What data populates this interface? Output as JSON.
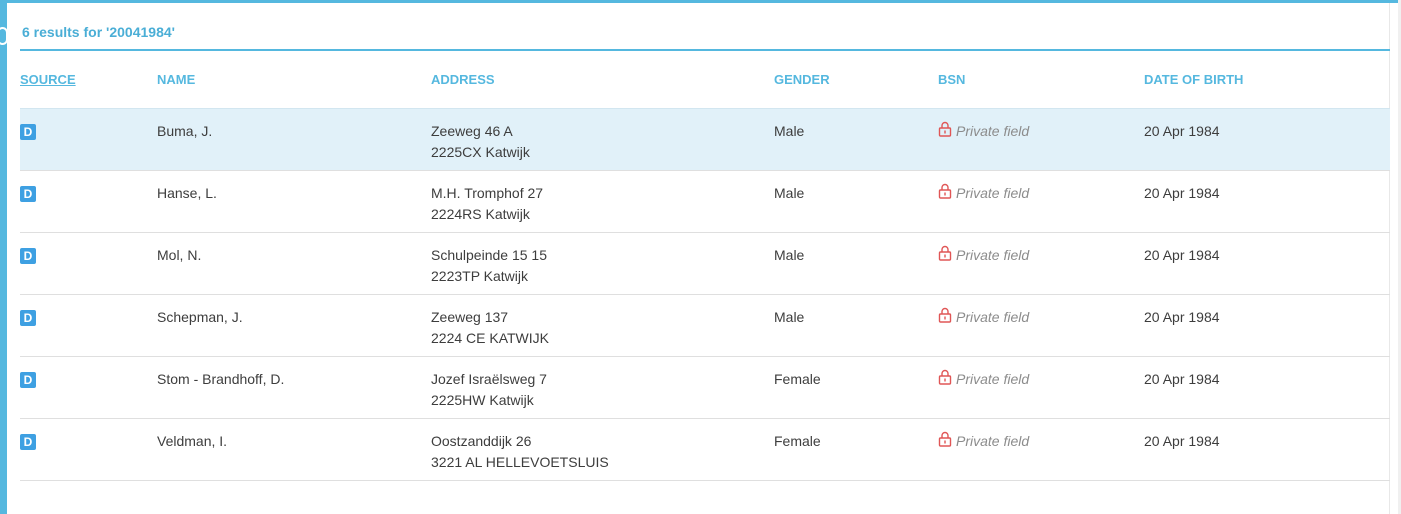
{
  "results": {
    "summary": "6 results for '20041984'"
  },
  "columns": {
    "source": "SOURCE",
    "name": "NAME",
    "address": "ADDRESS",
    "gender": "GENDER",
    "bsn": "BSN",
    "dob": "DATE OF BIRTH"
  },
  "colors": {
    "accent": "#55b8df",
    "badge": "#3ea0e2",
    "lock": "#e05656",
    "row_highlight": "#e1f1f9"
  },
  "rows": [
    {
      "source": "D",
      "name": "Buma, J.",
      "address1": "Zeeweg 46 A",
      "address2": "2225CX Katwijk",
      "gender": "Male",
      "bsn": "Private field",
      "bsn_icon": "lock-icon",
      "dob": "20 Apr 1984"
    },
    {
      "source": "D",
      "name": "Hanse, L.",
      "address1": "M.H. Tromphof 27",
      "address2": "2224RS Katwijk",
      "gender": "Male",
      "bsn": "Private field",
      "bsn_icon": "lock-icon",
      "dob": "20 Apr 1984"
    },
    {
      "source": "D",
      "name": "Mol, N.",
      "address1": "Schulpeinde 15 15",
      "address2": "2223TP Katwijk",
      "gender": "Male",
      "bsn": "Private field",
      "bsn_icon": "lock-icon",
      "dob": "20 Apr 1984"
    },
    {
      "source": "D",
      "name": "Schepman, J.",
      "address1": "Zeeweg 137",
      "address2": "2224 CE KATWIJK",
      "gender": "Male",
      "bsn": "Private field",
      "bsn_icon": "lock-icon",
      "dob": "20 Apr 1984"
    },
    {
      "source": "D",
      "name": "Stom - Brandhoff, D.",
      "address1": "Jozef Israëlsweg 7",
      "address2": "2225HW Katwijk",
      "gender": "Female",
      "bsn": "Private field",
      "bsn_icon": "lock-icon",
      "dob": "20 Apr 1984"
    },
    {
      "source": "D",
      "name": "Veldman, I.",
      "address1": "Oostzanddijk 26",
      "address2": "3221 AL HELLEVOETSLUIS",
      "gender": "Female",
      "bsn": "Private field",
      "bsn_icon": "lock-icon",
      "dob": "20 Apr 1984"
    }
  ]
}
